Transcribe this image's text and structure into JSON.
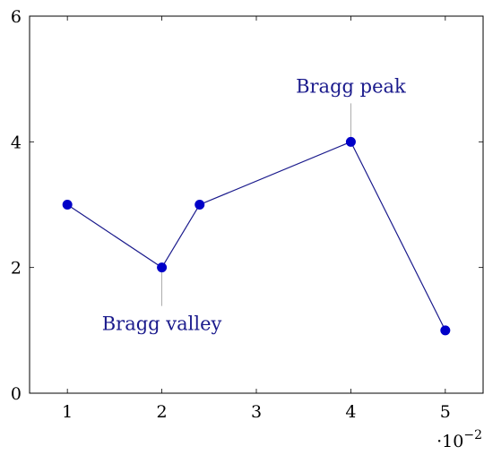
{
  "chart_data": {
    "type": "line",
    "title": "",
    "xlabel": "",
    "ylabel": "",
    "x_scale_label": "·10",
    "x_scale_exponent": "−2",
    "xlim": [
      0.6,
      5.4
    ],
    "ylim": [
      0,
      6
    ],
    "x_ticks": [
      1,
      2,
      3,
      4,
      5
    ],
    "y_ticks": [
      0,
      2,
      4,
      6
    ],
    "grid": false,
    "series": [
      {
        "color": "#0000c8",
        "points": [
          {
            "x": 1,
            "y": 3
          },
          {
            "x": 2,
            "y": 2
          },
          {
            "x": 2.4,
            "y": 3
          },
          {
            "x": 4,
            "y": 4
          },
          {
            "x": 5,
            "y": 1
          }
        ]
      }
    ],
    "annotations": [
      {
        "text": "Bragg valley",
        "x": 2,
        "y": 2,
        "position": "below"
      },
      {
        "text": "Bragg peak",
        "x": 4,
        "y": 4,
        "position": "above"
      }
    ]
  }
}
